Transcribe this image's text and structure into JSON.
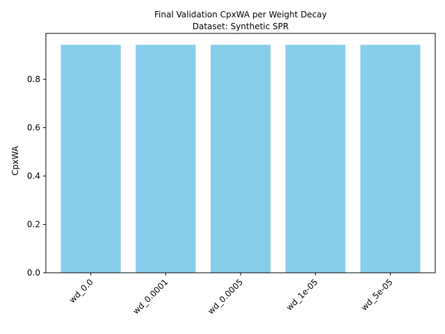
{
  "chart_data": {
    "type": "bar",
    "title": "Final Validation CpxWA per Weight Decay",
    "subtitle": "Dataset: Synthetic SPR",
    "xlabel": "",
    "ylabel": "CpxWA",
    "categories": [
      "wd_0.0",
      "wd_0.0001",
      "wd_0.0005",
      "wd_1e-05",
      "wd_5e-05"
    ],
    "values": [
      0.943,
      0.943,
      0.943,
      0.943,
      0.943
    ],
    "ylim": [
      0,
      0.99
    ],
    "yticks": [
      0.0,
      0.2,
      0.4,
      0.6,
      0.8
    ],
    "ytick_labels": [
      "0.0",
      "0.2",
      "0.4",
      "0.6",
      "0.8"
    ],
    "grid": false,
    "legend": "none",
    "bar_color": "#87ceeb"
  }
}
